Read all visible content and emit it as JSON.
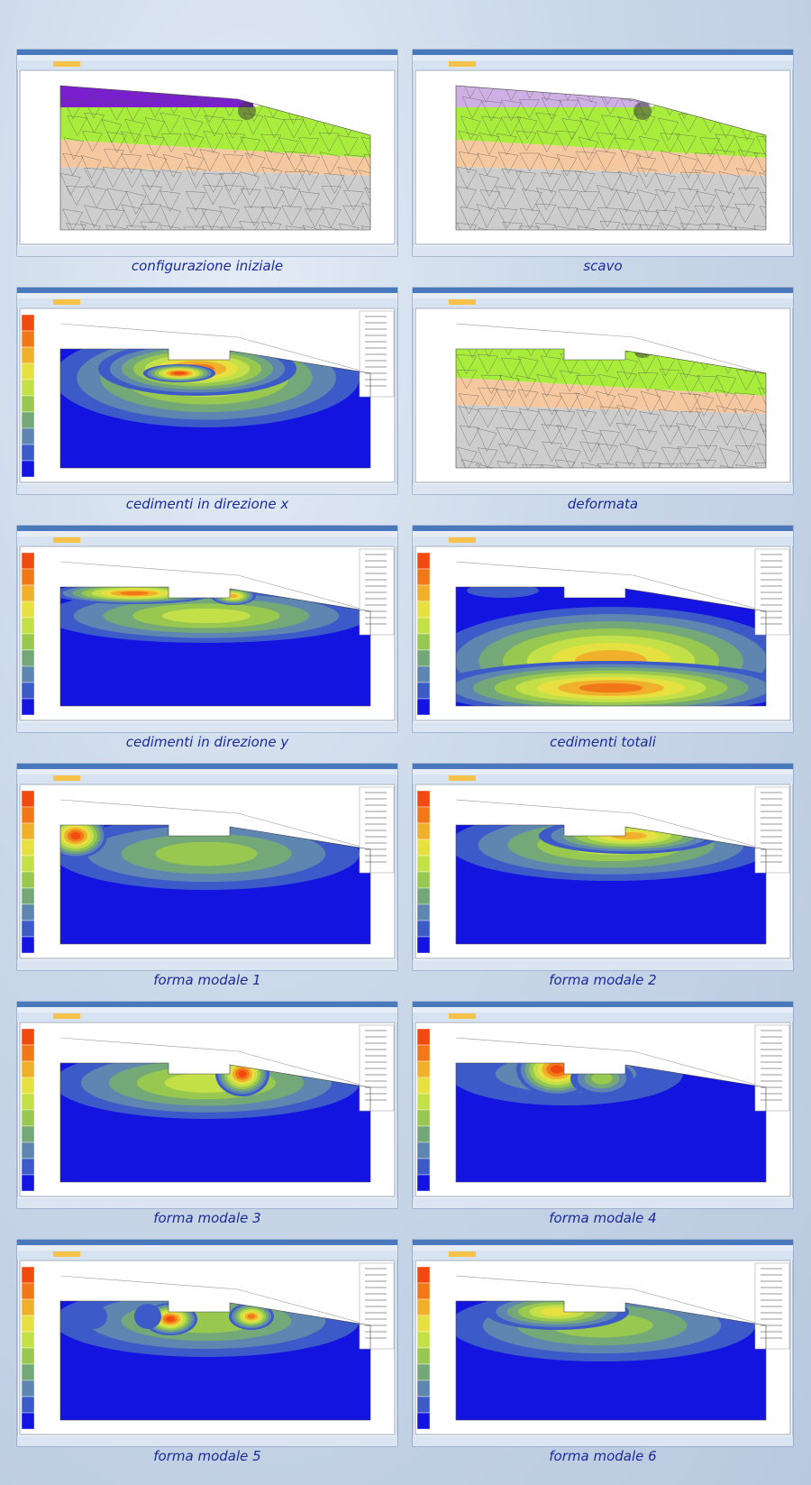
{
  "panels": [
    {
      "caption": "configurazione iniziale"
    },
    {
      "caption": "scavo"
    },
    {
      "caption": "cedimenti in direzione x"
    },
    {
      "caption": "deformata"
    },
    {
      "caption": "cedimenti in direzione y"
    },
    {
      "caption": "cedimenti totali"
    },
    {
      "caption": "forma modale 1"
    },
    {
      "caption": "forma modale 2"
    },
    {
      "caption": "forma modale 3"
    },
    {
      "caption": "forma modale 4"
    },
    {
      "caption": "forma modale 5"
    },
    {
      "caption": "forma modale 6"
    }
  ]
}
